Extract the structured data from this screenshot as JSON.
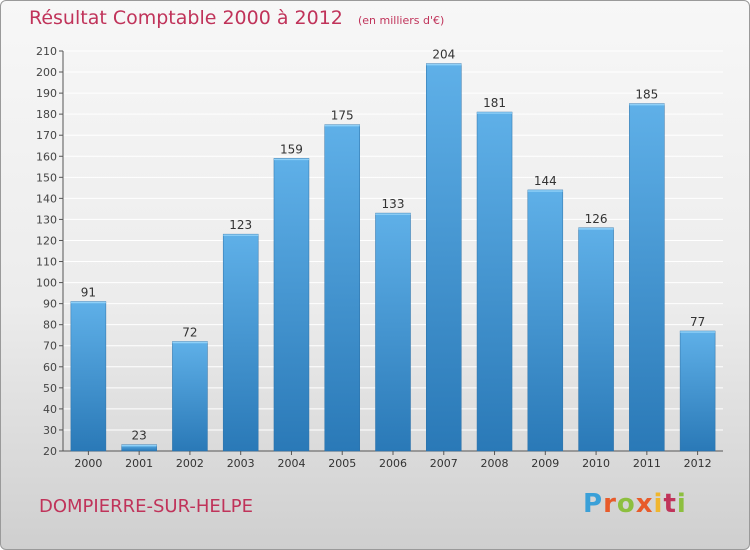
{
  "header": {
    "title": "Résultat Comptable 2000 à 2012",
    "subtitle": "(en milliers d'€)"
  },
  "footer": {
    "location": "DOMPIERRE-SUR-HELPE",
    "brand": "Proxiti"
  },
  "colors": {
    "title": "#c0335a",
    "bar_top": "#5fb0e8",
    "bar_bottom": "#2a79b7",
    "grid": "#ffffff"
  },
  "chart_data": {
    "type": "bar",
    "title": "Résultat Comptable 2000 à 2012",
    "subtitle": "(en milliers d'€)",
    "xlabel": "",
    "ylabel": "",
    "categories": [
      "2000",
      "2001",
      "2002",
      "2003",
      "2004",
      "2005",
      "2006",
      "2007",
      "2008",
      "2009",
      "2010",
      "2011",
      "2012"
    ],
    "values": [
      91,
      23,
      72,
      123,
      159,
      175,
      133,
      204,
      181,
      144,
      126,
      185,
      77
    ],
    "ylim": [
      20,
      210
    ],
    "yticks": [
      20,
      30,
      40,
      50,
      60,
      70,
      80,
      90,
      100,
      110,
      120,
      130,
      140,
      150,
      160,
      170,
      180,
      190,
      200,
      210
    ],
    "grid": true,
    "data_labels": true
  }
}
